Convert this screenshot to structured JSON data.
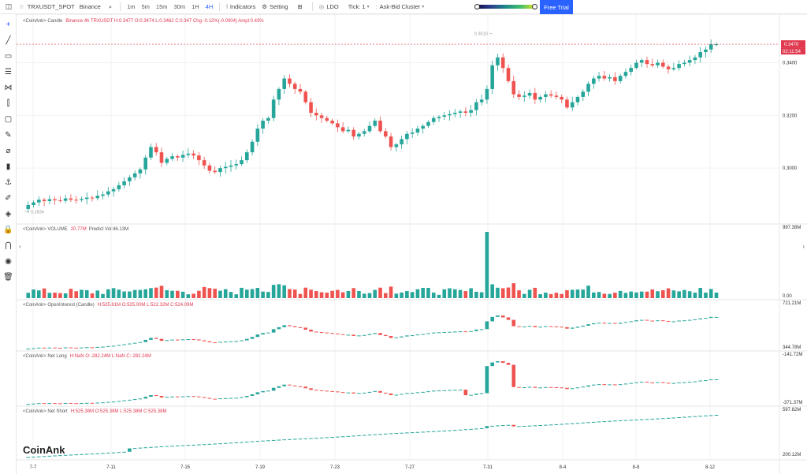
{
  "toolbar": {
    "logo_icon": "chart-logo-icon",
    "symbol": "TRXUSDT_SPOT",
    "exchange": "Binance",
    "timeframes": [
      "1m",
      "5m",
      "15m",
      "30m",
      "1H",
      "4H"
    ],
    "active_timeframe": "4H",
    "indicators_label": "Indicators",
    "setting_label": "Setting",
    "ldo_label": "LDO",
    "tick_label": "Tick:",
    "tick_value": "1",
    "cluster_label": "Ask-Bid Cluster",
    "free_trial_label": "Free Trial"
  },
  "main_pane": {
    "title": "<CoinAnk> Candle",
    "info": "Binance 4h TRXUSDT H:0.3477 O:0.3474 L:0.3462 C:0.347 Chg:-0.12%(-0.0004) Ampl:0.43%",
    "high_marker": "0.3510",
    "low_marker": "0.2834",
    "last_price": "0.3470",
    "countdown": "02:11:54",
    "y_labels": [
      "0.3400",
      "0.3200",
      "0.3000"
    ]
  },
  "volume_pane": {
    "title": "<CoinAnk> VOLUME",
    "value": "20.77M",
    "predict": "Predict Vol:46.13M",
    "y_labels": [
      "997.38M",
      "0.00"
    ]
  },
  "oi_pane": {
    "title": "<CoinAnk> OpenInterest (Candle)",
    "info": "H:525.81M O:525.00M L:522.32M C:524.09M",
    "y_labels": [
      "721.21M",
      "344.78M"
    ]
  },
  "netlong_pane": {
    "title": "<CoinAnk> Net Long",
    "info": "H:NaN O:-282.24M L:NaN C:-282.24M",
    "y_labels": [
      "-141.72M",
      "-371.37M"
    ]
  },
  "netshort_pane": {
    "title": "<CoinAnk> Net Short",
    "info": "H:525.38M O:525.38M L:525.38M C:525.38M",
    "y_labels": [
      "597.82M",
      "200.12M"
    ]
  },
  "watermark": "CoinAnk",
  "x_labels": [
    "7-7",
    "7-11",
    "7-15",
    "7-19",
    "7-23",
    "7-27",
    "7-31",
    "8-4",
    "8-8",
    "8-12"
  ],
  "colors": {
    "up": "#26a69a",
    "down": "#ef5350",
    "accent": "#2962ff",
    "last_price_bg": "#e0384f"
  },
  "tools": [
    "crosshair-icon",
    "trendline-icon",
    "rectangle-icon",
    "fib-icon",
    "pattern-icon",
    "measure-icon",
    "callout-icon",
    "ruler-icon",
    "brush-icon",
    "bar-chart-icon",
    "anchor-icon",
    "pencil-icon",
    "eraser-tool-icon",
    "lock-icon",
    "magnet-icon",
    "eye-icon",
    "trash-icon"
  ],
  "chart_data": {
    "type": "candlestick",
    "symbol": "TRXUSDT",
    "interval": "4h",
    "price_range": [
      0.28,
      0.356
    ],
    "price_path": [
      0.2845,
      0.286,
      0.287,
      0.288,
      0.2875,
      0.2882,
      0.2878,
      0.2876,
      0.2885,
      0.288,
      0.2879,
      0.2883,
      0.2888,
      0.2886,
      0.2895,
      0.29,
      0.2912,
      0.292,
      0.2935,
      0.295,
      0.2965,
      0.298,
      0.2995,
      0.304,
      0.308,
      0.306,
      0.302,
      0.3035,
      0.3045,
      0.304,
      0.305,
      0.3055,
      0.3048,
      0.303,
      0.301,
      0.299,
      0.2985,
      0.3,
      0.3005,
      0.301,
      0.3015,
      0.303,
      0.306,
      0.31,
      0.315,
      0.318,
      0.319,
      0.326,
      0.33,
      0.334,
      0.332,
      0.33,
      0.329,
      0.325,
      0.321,
      0.32,
      0.319,
      0.318,
      0.317,
      0.3155,
      0.314,
      0.3145,
      0.312,
      0.313,
      0.314,
      0.316,
      0.318,
      0.314,
      0.312,
      0.308,
      0.309,
      0.311,
      0.313,
      0.3135,
      0.315,
      0.316,
      0.3175,
      0.319,
      0.3195,
      0.32,
      0.3205,
      0.321,
      0.3215,
      0.321,
      0.322,
      0.325,
      0.326,
      0.33,
      0.339,
      0.342,
      0.338,
      0.333,
      0.328,
      0.327,
      0.3275,
      0.3285,
      0.326,
      0.327,
      0.328,
      0.3275,
      0.327,
      0.326,
      0.323,
      0.325,
      0.327,
      0.329,
      0.332,
      0.334,
      0.335,
      0.334,
      0.3345,
      0.333,
      0.335,
      0.3365,
      0.338,
      0.34,
      0.341,
      0.3395,
      0.339,
      0.34,
      0.3385,
      0.3375,
      0.338,
      0.3395,
      0.34,
      0.341,
      0.342,
      0.344,
      0.345,
      0.347,
      0.347
    ],
    "volume_max": 997.38,
    "volume_unit": "M",
    "volume_spike_index": 87
  }
}
